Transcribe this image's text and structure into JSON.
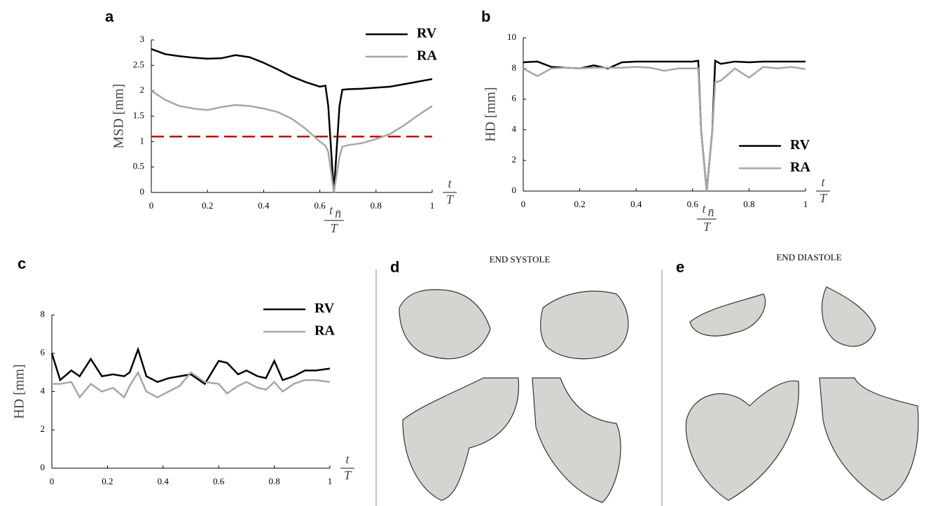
{
  "chart_data": [
    {
      "type": "line",
      "panel": "a",
      "ylabel": "MSD [mm]",
      "xlabel": {
        "num": "t",
        "den": "T"
      },
      "annotation": {
        "num": "t",
        "sub": "n̄",
        "den": "T",
        "x": 0.65
      },
      "x": [
        0,
        0.05,
        0.1,
        0.15,
        0.2,
        0.25,
        0.3,
        0.35,
        0.4,
        0.45,
        0.5,
        0.55,
        0.6,
        0.62,
        0.63,
        0.65,
        0.67,
        0.68,
        0.7,
        0.75,
        0.8,
        0.85,
        0.9,
        0.95,
        1
      ],
      "series": [
        {
          "name": "RV",
          "color": "#000000",
          "values": [
            2.82,
            2.72,
            2.68,
            2.65,
            2.63,
            2.64,
            2.7,
            2.66,
            2.55,
            2.42,
            2.28,
            2.17,
            2.08,
            2.1,
            1.7,
            0,
            1.7,
            2.02,
            2.03,
            2.04,
            2.06,
            2.08,
            2.13,
            2.18,
            2.23
          ]
        },
        {
          "name": "RA",
          "color": "#a6a6a6",
          "values": [
            2.0,
            1.82,
            1.7,
            1.65,
            1.62,
            1.68,
            1.72,
            1.7,
            1.65,
            1.58,
            1.45,
            1.25,
            1.0,
            0.92,
            0.8,
            0,
            0.7,
            0.9,
            0.93,
            0.97,
            1.05,
            1.15,
            1.32,
            1.52,
            1.7
          ]
        }
      ],
      "hline": {
        "value": 1.1,
        "color": "#c00000"
      },
      "xlim": [
        0,
        1
      ],
      "xticks": [
        0,
        0.2,
        0.4,
        0.6,
        0.8,
        1
      ],
      "ylim": [
        0,
        3
      ],
      "yticks": [
        0,
        0.5,
        1,
        1.5,
        2,
        2.5,
        3
      ],
      "legend": "upper right"
    },
    {
      "type": "line",
      "panel": "b",
      "ylabel": "HD [mm]",
      "xlabel": {
        "num": "t",
        "den": "T"
      },
      "annotation": {
        "num": "t",
        "sub": "n̄",
        "den": "T",
        "x": 0.65
      },
      "x": [
        0,
        0.05,
        0.1,
        0.15,
        0.2,
        0.25,
        0.3,
        0.35,
        0.4,
        0.45,
        0.5,
        0.55,
        0.6,
        0.62,
        0.63,
        0.65,
        0.67,
        0.68,
        0.7,
        0.75,
        0.8,
        0.85,
        0.9,
        0.95,
        1
      ],
      "series": [
        {
          "name": "RV",
          "color": "#000000",
          "values": [
            8.4,
            8.45,
            8.1,
            8.05,
            8.0,
            8.2,
            8.0,
            8.4,
            8.45,
            8.45,
            8.45,
            8.45,
            8.45,
            8.5,
            4,
            0,
            4,
            8.5,
            8.3,
            8.45,
            8.4,
            8.45,
            8.45,
            8.45,
            8.45
          ]
        },
        {
          "name": "RA",
          "color": "#a6a6a6",
          "values": [
            8.0,
            7.5,
            8.0,
            8.05,
            8.0,
            8.05,
            8.05,
            8.05,
            8.1,
            8.05,
            7.85,
            8.0,
            8.0,
            8.0,
            4,
            0,
            4,
            7.1,
            7.2,
            8.0,
            7.4,
            8.1,
            8.0,
            8.1,
            7.95
          ]
        }
      ],
      "xlim": [
        0,
        1
      ],
      "xticks": [
        0,
        0.2,
        0.4,
        0.6,
        0.8,
        1
      ],
      "ylim": [
        0,
        10
      ],
      "yticks": [
        0,
        2,
        4,
        6,
        8,
        10
      ],
      "legend": "center right"
    },
    {
      "type": "line",
      "panel": "c",
      "ylabel": "HD [mm]",
      "xlabel": {
        "num": "t",
        "den": "T"
      },
      "x": [
        0,
        0.03,
        0.07,
        0.1,
        0.14,
        0.18,
        0.22,
        0.26,
        0.28,
        0.31,
        0.34,
        0.38,
        0.42,
        0.46,
        0.5,
        0.55,
        0.6,
        0.63,
        0.67,
        0.7,
        0.74,
        0.77,
        0.8,
        0.83,
        0.87,
        0.91,
        0.95,
        1
      ],
      "series": [
        {
          "name": "RV",
          "color": "#000000",
          "values": [
            6.0,
            4.6,
            5.1,
            4.8,
            5.7,
            4.8,
            4.9,
            4.8,
            5.0,
            6.2,
            4.8,
            4.5,
            4.7,
            4.8,
            4.9,
            4.4,
            5.6,
            5.5,
            4.9,
            5.1,
            4.8,
            4.7,
            5.6,
            4.6,
            4.8,
            5.1,
            5.1,
            5.2
          ]
        },
        {
          "name": "RA",
          "color": "#a6a6a6",
          "values": [
            4.4,
            4.4,
            4.5,
            3.7,
            4.4,
            4.0,
            4.2,
            3.7,
            4.3,
            5.0,
            4.0,
            3.7,
            4.0,
            4.3,
            5.0,
            4.5,
            4.4,
            3.9,
            4.3,
            4.5,
            4.2,
            4.1,
            4.5,
            4.0,
            4.4,
            4.6,
            4.6,
            4.5
          ]
        }
      ],
      "xlim": [
        0,
        1
      ],
      "xticks": [
        0,
        0.2,
        0.4,
        0.6,
        0.8,
        1
      ],
      "ylim": [
        0,
        8
      ],
      "yticks": [
        0,
        2,
        4,
        6,
        8
      ],
      "legend": "upper right"
    }
  ],
  "panels": [
    {
      "label": "d",
      "title": "END SYSTOLE"
    },
    {
      "label": "e",
      "title": "END DIASTOLE"
    }
  ]
}
